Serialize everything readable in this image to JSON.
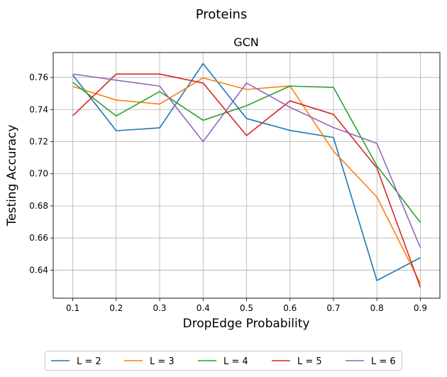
{
  "chart_data": {
    "type": "line",
    "suptitle": "Proteins",
    "title": "GCN",
    "xlabel": "DropEdge Probability",
    "ylabel": "Testing Accuracy",
    "x": [
      0.1,
      0.2,
      0.3,
      0.4,
      0.5,
      0.6,
      0.7,
      0.8,
      0.9
    ],
    "x_ticks": [
      "0.1",
      "0.2",
      "0.3",
      "0.4",
      "0.5",
      "0.6",
      "0.7",
      "0.8",
      "0.9"
    ],
    "y_ticks": [
      "0.64",
      "0.66",
      "0.68",
      "0.70",
      "0.72",
      "0.74",
      "0.76"
    ],
    "xlim": [
      0.055,
      0.945
    ],
    "ylim": [
      0.6225,
      0.7755
    ],
    "grid": true,
    "legend_position": "bottom-center",
    "series": [
      {
        "name": "L = 2",
        "color": "#1f77b4",
        "values": [
          0.7615,
          0.7268,
          0.7286,
          0.7686,
          0.7344,
          0.727,
          0.7226,
          0.6335,
          0.6477
        ]
      },
      {
        "name": "L = 3",
        "color": "#ff7f0e",
        "values": [
          0.7544,
          0.7459,
          0.7434,
          0.7597,
          0.7525,
          0.7547,
          0.7141,
          0.6855,
          0.6317
        ]
      },
      {
        "name": "L = 4",
        "color": "#2ca02c",
        "values": [
          0.757,
          0.736,
          0.7512,
          0.7333,
          0.7424,
          0.7546,
          0.7538,
          0.7049,
          0.6697
        ]
      },
      {
        "name": "L = 5",
        "color": "#d62728",
        "values": [
          0.7361,
          0.7621,
          0.7621,
          0.7565,
          0.7238,
          0.7454,
          0.737,
          0.7036,
          0.6293
        ]
      },
      {
        "name": "L = 6",
        "color": "#9467bd",
        "values": [
          0.7621,
          0.7583,
          0.7546,
          0.72,
          0.7565,
          0.7414,
          0.7288,
          0.7189,
          0.654
        ]
      }
    ]
  }
}
